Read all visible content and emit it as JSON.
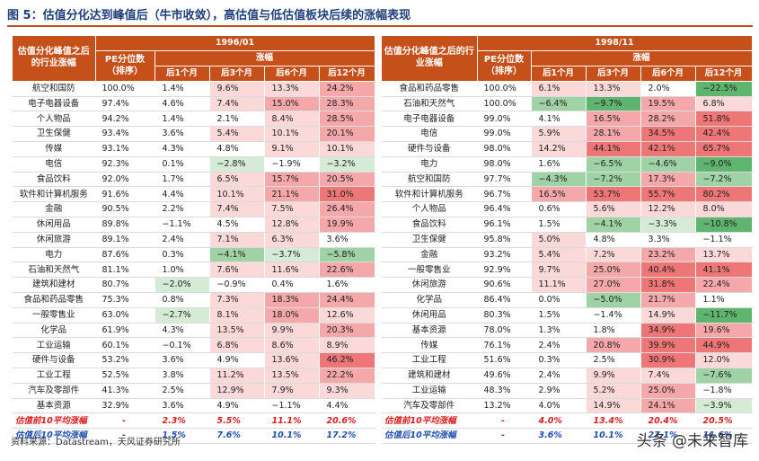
{
  "title": "图 5：估值分化达到峰值后（牛市收敛），高估值与低估值板块后续的涨幅表现",
  "source": "资料来源：Datastream，天风证券研究所",
  "watermark": "头条 @未来智库",
  "headers": {
    "industry": "估值分化峰值之后的行业涨幅",
    "pe": "PE分位数（排序）",
    "gain": "涨幅",
    "m1": "后1个月",
    "m3": "后3个月",
    "m6": "后6个月",
    "m12": "后12个月"
  },
  "periods": [
    {
      "date": "1996/01",
      "rows": [
        {
          "name": "航空和国防",
          "pe": "100.0%",
          "m1": "1.4%",
          "m3": "9.6%",
          "m6": "13.3%",
          "m12": "24.2%"
        },
        {
          "name": "电子电器设备",
          "pe": "97.4%",
          "m1": "4.6%",
          "m3": "7.4%",
          "m6": "15.0%",
          "m12": "28.3%"
        },
        {
          "name": "个人物品",
          "pe": "94.2%",
          "m1": "1.4%",
          "m3": "2.1%",
          "m6": "8.4%",
          "m12": "28.5%"
        },
        {
          "name": "卫生保健",
          "pe": "93.4%",
          "m1": "3.6%",
          "m3": "5.4%",
          "m6": "10.1%",
          "m12": "20.1%"
        },
        {
          "name": "传媒",
          "pe": "93.1%",
          "m1": "4.3%",
          "m3": "4.8%",
          "m6": "9.1%",
          "m12": "10.1%"
        },
        {
          "name": "电信",
          "pe": "92.3%",
          "m1": "0.1%",
          "m3": "−2.8%",
          "m6": "−1.9%",
          "m12": "−3.2%"
        },
        {
          "name": "食品饮料",
          "pe": "92.0%",
          "m1": "1.7%",
          "m3": "6.5%",
          "m6": "15.7%",
          "m12": "20.5%"
        },
        {
          "name": "软件和计算机服务",
          "pe": "91.6%",
          "m1": "4.4%",
          "m3": "10.1%",
          "m6": "21.1%",
          "m12": "31.0%"
        },
        {
          "name": "金融",
          "pe": "90.5%",
          "m1": "2.2%",
          "m3": "7.4%",
          "m6": "7.5%",
          "m12": "26.4%"
        },
        {
          "name": "休闲用品",
          "pe": "89.8%",
          "m1": "−1.1%",
          "m3": "4.5%",
          "m6": "12.8%",
          "m12": "19.9%"
        },
        {
          "name": "休闲旅游",
          "pe": "89.1%",
          "m1": "2.4%",
          "m3": "7.1%",
          "m6": "6.3%",
          "m12": "3.6%"
        },
        {
          "name": "电力",
          "pe": "87.6%",
          "m1": "0.3%",
          "m3": "−4.1%",
          "m6": "−3.7%",
          "m12": "−5.8%"
        },
        {
          "name": "石油和天然气",
          "pe": "81.1%",
          "m1": "1.0%",
          "m3": "7.6%",
          "m6": "11.6%",
          "m12": "22.6%"
        },
        {
          "name": "建筑和建材",
          "pe": "80.7%",
          "m1": "−2.0%",
          "m3": "−0.9%",
          "m6": "0.4%",
          "m12": "1.6%"
        },
        {
          "name": "食品和药品零售",
          "pe": "75.3%",
          "m1": "0.8%",
          "m3": "7.3%",
          "m6": "18.3%",
          "m12": "24.4%"
        },
        {
          "name": "一般零售业",
          "pe": "63.0%",
          "m1": "−2.7%",
          "m3": "8.1%",
          "m6": "18.0%",
          "m12": "12.6%"
        },
        {
          "name": "化学品",
          "pe": "61.9%",
          "m1": "4.3%",
          "m3": "13.5%",
          "m6": "9.9%",
          "m12": "20.3%"
        },
        {
          "name": "工业运输",
          "pe": "60.1%",
          "m1": "−0.1%",
          "m3": "6.8%",
          "m6": "8.6%",
          "m12": "8.9%"
        },
        {
          "name": "硬件与设备",
          "pe": "53.2%",
          "m1": "3.6%",
          "m3": "4.9%",
          "m6": "13.6%",
          "m12": "46.2%"
        },
        {
          "name": "工业工程",
          "pe": "52.5%",
          "m1": "3.8%",
          "m3": "11.2%",
          "m6": "13.5%",
          "m12": "22.2%"
        },
        {
          "name": "汽车及零部件",
          "pe": "41.3%",
          "m1": "2.5%",
          "m3": "12.9%",
          "m6": "7.9%",
          "m12": "9.3%"
        },
        {
          "name": "基本资源",
          "pe": "32.9%",
          "m1": "3.6%",
          "m3": "4.9%",
          "m6": "−1.1%",
          "m12": "4.4%"
        }
      ],
      "pre": {
        "name": "估值前10平均涨幅",
        "pe": "-",
        "m1": "2.3%",
        "m3": "5.5%",
        "m6": "11.1%",
        "m12": "20.6%"
      },
      "post": {
        "name": "估值后10平均涨幅",
        "pe": "-",
        "m1": "1.5%",
        "m3": "7.6%",
        "m6": "10.1%",
        "m12": "17.2%"
      }
    },
    {
      "date": "1998/11",
      "rows": [
        {
          "name": "食品和药品零售",
          "pe": "100.0%",
          "m1": "6.1%",
          "m3": "13.3%",
          "m6": "2.0%",
          "m12": "−22.5%"
        },
        {
          "name": "石油和天然气",
          "pe": "100.0%",
          "m1": "−6.4%",
          "m3": "−9.7%",
          "m6": "19.5%",
          "m12": "6.8%"
        },
        {
          "name": "电子电器设备",
          "pe": "99.0%",
          "m1": "4.1%",
          "m3": "16.5%",
          "m6": "28.2%",
          "m12": "51.8%"
        },
        {
          "name": "电信",
          "pe": "99.0%",
          "m1": "5.9%",
          "m3": "28.1%",
          "m6": "34.5%",
          "m12": "42.4%"
        },
        {
          "name": "硬件与设备",
          "pe": "98.0%",
          "m1": "14.2%",
          "m3": "44.1%",
          "m6": "42.1%",
          "m12": "65.7%"
        },
        {
          "name": "电力",
          "pe": "98.0%",
          "m1": "1.6%",
          "m3": "−6.5%",
          "m6": "−4.6%",
          "m12": "−9.0%"
        },
        {
          "name": "航空和国防",
          "pe": "97.7%",
          "m1": "−4.3%",
          "m3": "−7.2%",
          "m6": "17.3%",
          "m12": "−7.2%"
        },
        {
          "name": "软件和计算机服务",
          "pe": "96.7%",
          "m1": "16.5%",
          "m3": "53.7%",
          "m6": "55.7%",
          "m12": "80.2%"
        },
        {
          "name": "个人物品",
          "pe": "96.4%",
          "m1": "0.6%",
          "m3": "5.6%",
          "m6": "12.2%",
          "m12": "8.0%"
        },
        {
          "name": "食品饮料",
          "pe": "96.1%",
          "m1": "1.5%",
          "m3": "−4.1%",
          "m6": "−3.3%",
          "m12": "−10.8%"
        },
        {
          "name": "卫生保健",
          "pe": "95.8%",
          "m1": "5.0%",
          "m3": "4.8%",
          "m6": "3.3%",
          "m12": "−1.1%"
        },
        {
          "name": "金融",
          "pe": "93.2%",
          "m1": "5.4%",
          "m3": "7.2%",
          "m6": "23.2%",
          "m12": "13.7%"
        },
        {
          "name": "一般零售业",
          "pe": "92.9%",
          "m1": "9.7%",
          "m3": "25.0%",
          "m6": "40.4%",
          "m12": "41.1%"
        },
        {
          "name": "休闲旅游",
          "pe": "90.6%",
          "m1": "11.1%",
          "m3": "27.0%",
          "m6": "31.8%",
          "m12": "22.4%"
        },
        {
          "name": "化学品",
          "pe": "86.4%",
          "m1": "0.0%",
          "m3": "−5.0%",
          "m6": "21.7%",
          "m12": "1.1%"
        },
        {
          "name": "休闲用品",
          "pe": "80.3%",
          "m1": "1.5%",
          "m3": "−1.4%",
          "m6": "14.9%",
          "m12": "−11.7%"
        },
        {
          "name": "基本资源",
          "pe": "78.0%",
          "m1": "1.3%",
          "m3": "1.8%",
          "m6": "34.9%",
          "m12": "19.6%"
        },
        {
          "name": "传媒",
          "pe": "76.1%",
          "m1": "2.4%",
          "m3": "20.8%",
          "m6": "39.9%",
          "m12": "44.9%"
        },
        {
          "name": "工业工程",
          "pe": "51.6%",
          "m1": "0.3%",
          "m3": "2.5%",
          "m6": "30.9%",
          "m12": "12.0%"
        },
        {
          "name": "建筑和建材",
          "pe": "49.6%",
          "m1": "2.4%",
          "m3": "9.9%",
          "m6": "7.4%",
          "m12": "−7.6%"
        },
        {
          "name": "工业运输",
          "pe": "48.3%",
          "m1": "2.9%",
          "m3": "5.2%",
          "m6": "25.0%",
          "m12": "−1.8%"
        },
        {
          "name": "汽车及零部件",
          "pe": "13.2%",
          "m1": "4.0%",
          "m3": "14.9%",
          "m6": "24.1%",
          "m12": "−3.9%"
        }
      ],
      "pre": {
        "name": "估值前10平均涨幅",
        "pe": "-",
        "m1": "4.0%",
        "m3": "13.4%",
        "m6": "20.4%",
        "m12": "20.5%"
      },
      "post": {
        "name": "估值后10平均涨幅",
        "pe": "-",
        "m1": "3.6%",
        "m3": "10.1%",
        "m6": "27.1%",
        "m12": "11.6%"
      }
    }
  ]
}
